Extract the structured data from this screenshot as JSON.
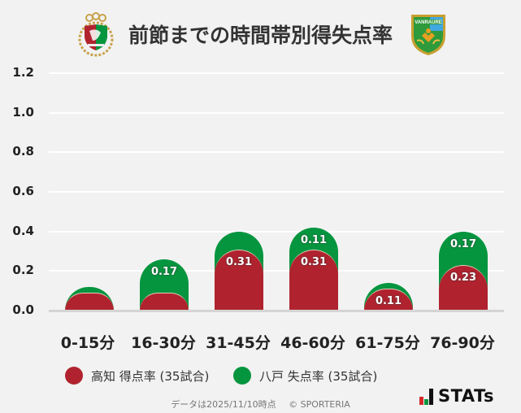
{
  "header": {
    "title": "前節までの時間帯別得失点率",
    "logos": [
      {
        "name": "kochi-crest",
        "colors": [
          "#b0232e",
          "#06953f",
          "#c8a24a"
        ]
      },
      {
        "name": "hachinohe-crest",
        "colors": [
          "#2e9a3c",
          "#3fa8e0",
          "#e8a020"
        ]
      }
    ]
  },
  "chart_data": {
    "type": "bar",
    "stacked": true,
    "title": "前節までの時間帯別得失点率",
    "xlabel": "",
    "ylabel": "",
    "ylim": [
      0,
      1.2
    ],
    "yticks": [
      "0.0",
      "0.2",
      "0.4",
      "0.6",
      "0.8",
      "1.0",
      "1.2"
    ],
    "grid": true,
    "legend_position": "bottom",
    "categories": [
      "0-15分",
      "16-30分",
      "31-45分",
      "46-60分",
      "61-75分",
      "76-90分"
    ],
    "series": [
      {
        "name": "高知 得点率 (35試合)",
        "color": "#b0232e",
        "values": [
          0.09,
          0.09,
          0.31,
          0.31,
          0.11,
          0.23
        ],
        "labels": [
          "",
          "",
          "0.31",
          "0.31",
          "0.11",
          "0.23"
        ]
      },
      {
        "name": "八戸 失点率 (35試合)",
        "color": "#06953f",
        "values": [
          0.03,
          0.17,
          0.09,
          0.11,
          0.03,
          0.17
        ],
        "labels": [
          "",
          "0.17",
          "",
          "0.11",
          "",
          "0.17"
        ]
      }
    ]
  },
  "legend": {
    "items": [
      {
        "label": "高知 得点率 (35試合)",
        "color": "#b0232e"
      },
      {
        "label": "八戸 失点率 (35試合)",
        "color": "#06953f"
      }
    ]
  },
  "footer": {
    "note": "データは2025/11/10時点",
    "copyright": "© SPORTERIA"
  },
  "brand": {
    "name": "STATs",
    "bar_colors": [
      "#d42a2a",
      "#06953f",
      "#111111"
    ]
  }
}
